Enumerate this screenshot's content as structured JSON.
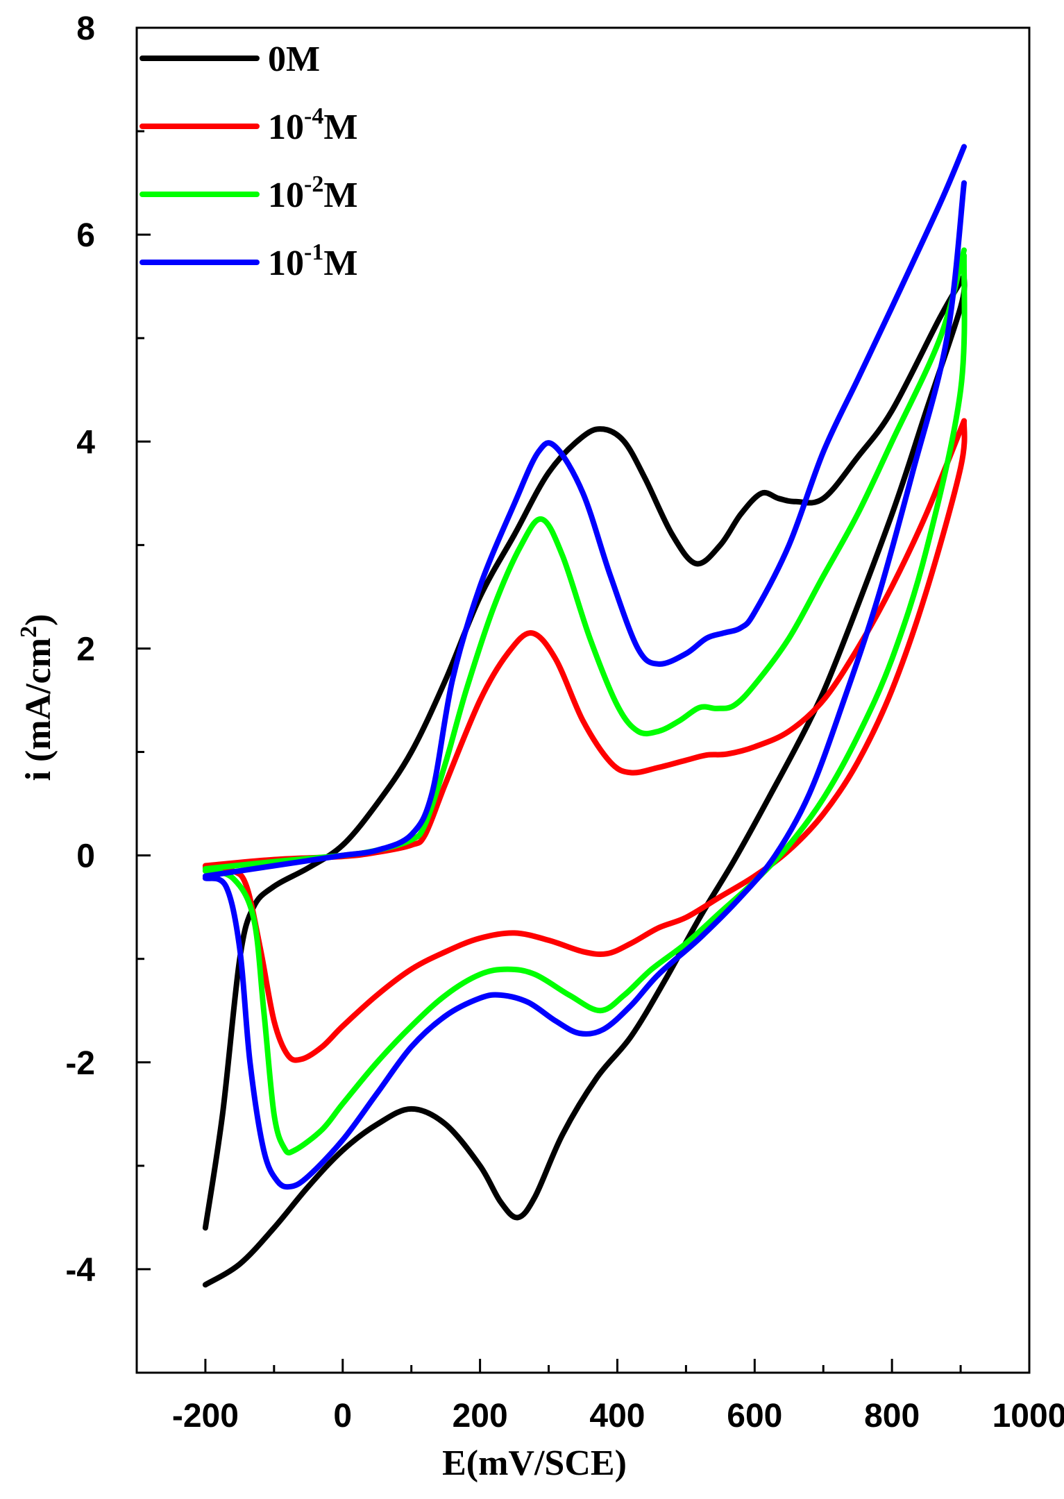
{
  "chart_data": {
    "type": "line",
    "title": "",
    "xlabel": "E(mV/SCE)",
    "ylabel_main": "i (mA/cm",
    "ylabel_sup": "2",
    "ylabel_close": ")",
    "xlim": [
      -300,
      1000
    ],
    "ylim": [
      -5,
      8
    ],
    "xticks": [
      -200,
      0,
      200,
      400,
      600,
      800,
      1000
    ],
    "xtick_labels": [
      "-200",
      "0",
      "200",
      "400",
      "600",
      "800",
      "1000"
    ],
    "yticks": [
      -4,
      -2,
      0,
      2,
      4,
      6,
      8
    ],
    "ytick_labels": [
      "-4",
      "-2",
      "0",
      "2",
      "4",
      "6",
      "8"
    ],
    "legend_position": "top-left",
    "series": [
      {
        "name": "0M",
        "legend_base": "0M",
        "legend_sup": "",
        "legend_unit": "",
        "color": "#000000",
        "forward": [
          [
            -200,
            -4.15
          ],
          [
            -150,
            -3.95
          ],
          [
            -100,
            -3.6
          ],
          [
            -50,
            -3.2
          ],
          [
            0,
            -2.85
          ],
          [
            50,
            -2.6
          ],
          [
            100,
            -2.45
          ],
          [
            150,
            -2.6
          ],
          [
            200,
            -3.0
          ],
          [
            230,
            -3.35
          ],
          [
            255,
            -3.5
          ],
          [
            280,
            -3.3
          ],
          [
            320,
            -2.7
          ],
          [
            370,
            -2.15
          ],
          [
            420,
            -1.75
          ],
          [
            470,
            -1.2
          ],
          [
            520,
            -0.6
          ],
          [
            570,
            -0.05
          ],
          [
            620,
            0.55
          ],
          [
            680,
            1.3
          ],
          [
            720,
            1.9
          ],
          [
            800,
            3.3
          ],
          [
            850,
            4.3
          ],
          [
            900,
            5.3
          ],
          [
            905,
            5.6
          ]
        ],
        "reverse": [
          [
            905,
            5.6
          ],
          [
            870,
            5.2
          ],
          [
            800,
            4.3
          ],
          [
            750,
            3.85
          ],
          [
            700,
            3.45
          ],
          [
            660,
            3.42
          ],
          [
            635,
            3.45
          ],
          [
            610,
            3.5
          ],
          [
            580,
            3.3
          ],
          [
            550,
            3.0
          ],
          [
            515,
            2.82
          ],
          [
            480,
            3.1
          ],
          [
            440,
            3.65
          ],
          [
            410,
            4.0
          ],
          [
            380,
            4.12
          ],
          [
            350,
            4.05
          ],
          [
            300,
            3.7
          ],
          [
            250,
            3.1
          ],
          [
            200,
            2.5
          ],
          [
            150,
            1.7
          ],
          [
            100,
            1.0
          ],
          [
            50,
            0.5
          ],
          [
            0,
            0.1
          ],
          [
            -50,
            -0.12
          ],
          [
            -100,
            -0.3
          ],
          [
            -130,
            -0.5
          ],
          [
            -150,
            -1.0
          ],
          [
            -175,
            -2.5
          ],
          [
            -200,
            -3.6
          ]
        ]
      },
      {
        "name": "10-4M",
        "legend_base": "10",
        "legend_sup": "-4",
        "legend_unit": "M",
        "color": "#ff0000",
        "forward": [
          [
            -200,
            -0.12
          ],
          [
            -160,
            -0.15
          ],
          [
            -140,
            -0.3
          ],
          [
            -120,
            -0.9
          ],
          [
            -100,
            -1.6
          ],
          [
            -80,
            -1.93
          ],
          [
            -60,
            -1.97
          ],
          [
            -30,
            -1.85
          ],
          [
            0,
            -1.65
          ],
          [
            50,
            -1.35
          ],
          [
            100,
            -1.1
          ],
          [
            150,
            -0.93
          ],
          [
            200,
            -0.8
          ],
          [
            250,
            -0.75
          ],
          [
            300,
            -0.82
          ],
          [
            350,
            -0.93
          ],
          [
            385,
            -0.95
          ],
          [
            420,
            -0.85
          ],
          [
            460,
            -0.7
          ],
          [
            500,
            -0.6
          ],
          [
            550,
            -0.4
          ],
          [
            600,
            -0.2
          ],
          [
            650,
            0.05
          ],
          [
            700,
            0.4
          ],
          [
            750,
            0.9
          ],
          [
            800,
            1.6
          ],
          [
            850,
            2.55
          ],
          [
            900,
            3.75
          ],
          [
            905,
            4.2
          ]
        ],
        "reverse": [
          [
            905,
            4.2
          ],
          [
            850,
            3.3
          ],
          [
            800,
            2.6
          ],
          [
            750,
            2.0
          ],
          [
            700,
            1.5
          ],
          [
            650,
            1.2
          ],
          [
            600,
            1.05
          ],
          [
            560,
            0.98
          ],
          [
            530,
            0.97
          ],
          [
            500,
            0.92
          ],
          [
            460,
            0.85
          ],
          [
            420,
            0.8
          ],
          [
            390,
            0.9
          ],
          [
            350,
            1.3
          ],
          [
            310,
            1.9
          ],
          [
            275,
            2.15
          ],
          [
            240,
            1.95
          ],
          [
            200,
            1.5
          ],
          [
            150,
            0.7
          ],
          [
            120,
            0.2
          ],
          [
            100,
            0.1
          ],
          [
            50,
            0.03
          ],
          [
            0,
            -0.01
          ],
          [
            -100,
            -0.04
          ],
          [
            -200,
            -0.1
          ]
        ]
      },
      {
        "name": "10-2M",
        "legend_base": "10",
        "legend_sup": "-2",
        "legend_unit": "M",
        "color": "#00ff00",
        "forward": [
          [
            -200,
            -0.15
          ],
          [
            -160,
            -0.22
          ],
          [
            -130,
            -0.6
          ],
          [
            -115,
            -1.5
          ],
          [
            -100,
            -2.5
          ],
          [
            -85,
            -2.83
          ],
          [
            -70,
            -2.85
          ],
          [
            -30,
            -2.65
          ],
          [
            0,
            -2.4
          ],
          [
            50,
            -2.0
          ],
          [
            100,
            -1.65
          ],
          [
            150,
            -1.35
          ],
          [
            200,
            -1.15
          ],
          [
            240,
            -1.1
          ],
          [
            280,
            -1.15
          ],
          [
            330,
            -1.35
          ],
          [
            375,
            -1.5
          ],
          [
            410,
            -1.35
          ],
          [
            450,
            -1.1
          ],
          [
            500,
            -0.85
          ],
          [
            550,
            -0.55
          ],
          [
            600,
            -0.25
          ],
          [
            650,
            0.1
          ],
          [
            700,
            0.55
          ],
          [
            750,
            1.15
          ],
          [
            800,
            1.9
          ],
          [
            850,
            2.95
          ],
          [
            900,
            4.5
          ],
          [
            905,
            5.8
          ]
        ],
        "reverse": [
          [
            905,
            5.85
          ],
          [
            870,
            5.0
          ],
          [
            800,
            4.0
          ],
          [
            750,
            3.3
          ],
          [
            700,
            2.7
          ],
          [
            650,
            2.1
          ],
          [
            600,
            1.65
          ],
          [
            570,
            1.45
          ],
          [
            545,
            1.42
          ],
          [
            520,
            1.43
          ],
          [
            490,
            1.3
          ],
          [
            460,
            1.2
          ],
          [
            430,
            1.2
          ],
          [
            400,
            1.45
          ],
          [
            360,
            2.1
          ],
          [
            320,
            2.9
          ],
          [
            290,
            3.25
          ],
          [
            260,
            3.0
          ],
          [
            220,
            2.4
          ],
          [
            180,
            1.6
          ],
          [
            150,
            0.9
          ],
          [
            120,
            0.3
          ],
          [
            100,
            0.15
          ],
          [
            50,
            0.05
          ],
          [
            0,
            0.0
          ],
          [
            -100,
            -0.06
          ],
          [
            -200,
            -0.13
          ]
        ]
      },
      {
        "name": "10-1M",
        "legend_base": "10",
        "legend_sup": "-1",
        "legend_unit": "M",
        "color": "#0000ff",
        "forward": [
          [
            -200,
            -0.22
          ],
          [
            -170,
            -0.3
          ],
          [
            -150,
            -0.9
          ],
          [
            -135,
            -2.0
          ],
          [
            -115,
            -2.85
          ],
          [
            -95,
            -3.15
          ],
          [
            -75,
            -3.2
          ],
          [
            -50,
            -3.1
          ],
          [
            0,
            -2.75
          ],
          [
            50,
            -2.3
          ],
          [
            100,
            -1.85
          ],
          [
            150,
            -1.55
          ],
          [
            200,
            -1.38
          ],
          [
            230,
            -1.35
          ],
          [
            270,
            -1.42
          ],
          [
            310,
            -1.6
          ],
          [
            345,
            -1.72
          ],
          [
            380,
            -1.68
          ],
          [
            420,
            -1.45
          ],
          [
            460,
            -1.15
          ],
          [
            520,
            -0.8
          ],
          [
            580,
            -0.4
          ],
          [
            630,
            0.0
          ],
          [
            680,
            0.6
          ],
          [
            730,
            1.5
          ],
          [
            780,
            2.5
          ],
          [
            830,
            3.7
          ],
          [
            880,
            5.0
          ],
          [
            905,
            6.5
          ]
        ],
        "reverse": [
          [
            905,
            6.85
          ],
          [
            870,
            6.3
          ],
          [
            800,
            5.3
          ],
          [
            750,
            4.6
          ],
          [
            700,
            3.9
          ],
          [
            650,
            3.0
          ],
          [
            600,
            2.35
          ],
          [
            580,
            2.2
          ],
          [
            555,
            2.15
          ],
          [
            530,
            2.1
          ],
          [
            500,
            1.95
          ],
          [
            460,
            1.85
          ],
          [
            430,
            2.0
          ],
          [
            390,
            2.7
          ],
          [
            350,
            3.5
          ],
          [
            310,
            3.95
          ],
          [
            285,
            3.9
          ],
          [
            250,
            3.4
          ],
          [
            200,
            2.6
          ],
          [
            160,
            1.7
          ],
          [
            130,
            0.6
          ],
          [
            100,
            0.2
          ],
          [
            50,
            0.05
          ],
          [
            0,
            0.0
          ],
          [
            -50,
            -0.05
          ],
          [
            -100,
            -0.1
          ],
          [
            -200,
            -0.2
          ]
        ]
      }
    ]
  }
}
